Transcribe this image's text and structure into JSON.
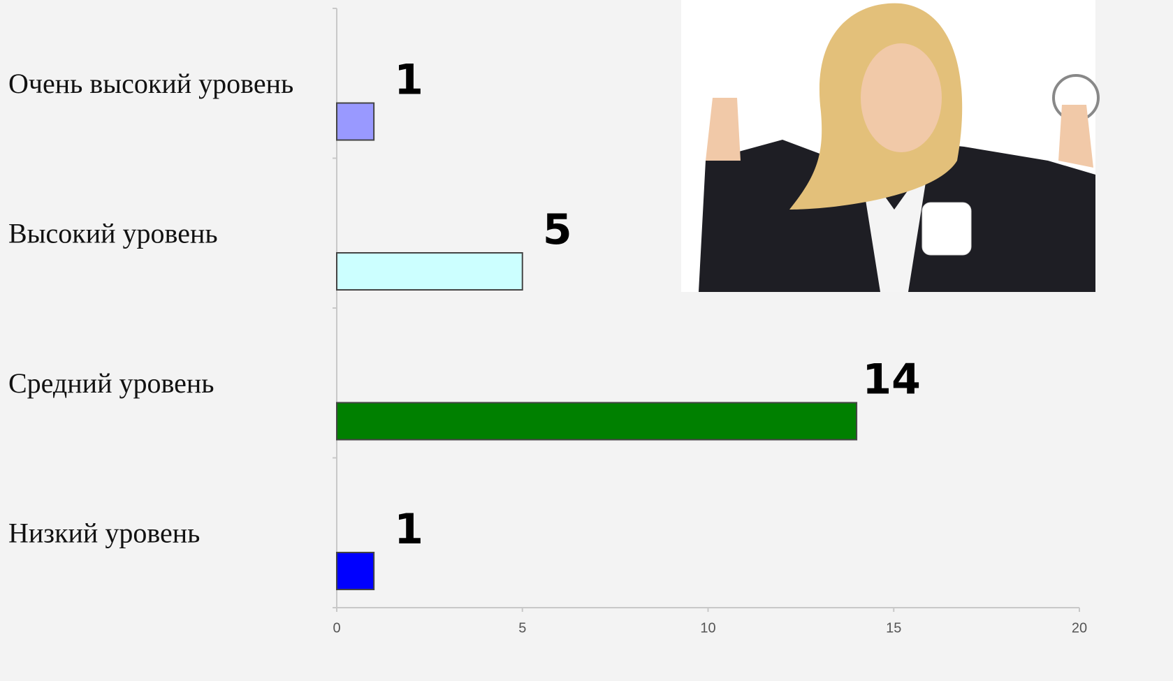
{
  "chart_data": {
    "type": "bar",
    "orientation": "horizontal",
    "categories": [
      "Очень высокий уровень",
      "Высокий уровень",
      "Средний уровень",
      "Низкий уровень"
    ],
    "values": [
      1,
      5,
      14,
      1
    ],
    "colors": [
      "#9999ff",
      "#ccffff",
      "#008000",
      "#0000ff"
    ],
    "xlim": [
      0,
      20
    ],
    "xticks": [
      0,
      5,
      10,
      15,
      20
    ]
  }
}
